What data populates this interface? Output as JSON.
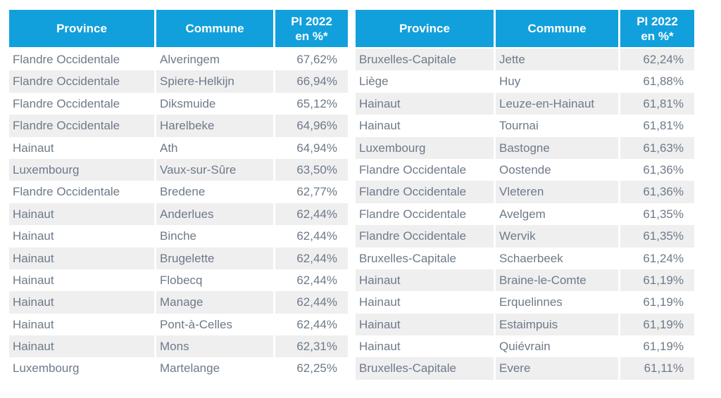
{
  "colors": {
    "header_blue": "#12A0DC",
    "stripe_gray": "#EFEFF0",
    "body_text": "#6E7A88",
    "header_text": "#FFFFFF"
  },
  "headers": {
    "province": "Province",
    "commune": "Commune",
    "pi_line1": "PI 2022",
    "pi_line2": "en %*"
  },
  "chart_data": {
    "type": "table",
    "columns": [
      "Province",
      "Commune",
      "PI 2022 en %*"
    ],
    "left_rows": [
      {
        "province": "Flandre Occidentale",
        "commune": "Alveringem",
        "pi": "67,62%"
      },
      {
        "province": "Flandre Occidentale",
        "commune": "Spiere-Helkijn",
        "pi": "66,94%"
      },
      {
        "province": "Flandre Occidentale",
        "commune": "Diksmuide",
        "pi": "65,12%"
      },
      {
        "province": "Flandre Occidentale",
        "commune": "Harelbeke",
        "pi": "64,96%"
      },
      {
        "province": "Hainaut",
        "commune": "Ath",
        "pi": "64,94%"
      },
      {
        "province": "Luxembourg",
        "commune": "Vaux-sur-Sûre",
        "pi": "63,50%"
      },
      {
        "province": "Flandre Occidentale",
        "commune": "Bredene",
        "pi": "62,77%"
      },
      {
        "province": "Hainaut",
        "commune": "Anderlues",
        "pi": "62,44%"
      },
      {
        "province": "Hainaut",
        "commune": "Binche",
        "pi": "62,44%"
      },
      {
        "province": "Hainaut",
        "commune": "Brugelette",
        "pi": "62,44%"
      },
      {
        "province": "Hainaut",
        "commune": "Flobecq",
        "pi": "62,44%"
      },
      {
        "province": "Hainaut",
        "commune": "Manage",
        "pi": "62,44%"
      },
      {
        "province": "Hainaut",
        "commune": "Pont-à-Celles",
        "pi": "62,44%"
      },
      {
        "province": "Hainaut",
        "commune": "Mons",
        "pi": "62,31%"
      },
      {
        "province": "Luxembourg",
        "commune": "Martelange",
        "pi": "62,25%"
      }
    ],
    "right_rows": [
      {
        "province": "Bruxelles-Capitale",
        "commune": "Jette",
        "pi": "62,24%"
      },
      {
        "province": "Liège",
        "commune": "Huy",
        "pi": "61,88%"
      },
      {
        "province": "Hainaut",
        "commune": "Leuze-en-Hainaut",
        "pi": "61,81%"
      },
      {
        "province": "Hainaut",
        "commune": "Tournai",
        "pi": "61,81%"
      },
      {
        "province": "Luxembourg",
        "commune": "Bastogne",
        "pi": "61,63%"
      },
      {
        "province": "Flandre Occidentale",
        "commune": "Oostende",
        "pi": "61,36%"
      },
      {
        "province": "Flandre Occidentale",
        "commune": "Vleteren",
        "pi": "61,36%"
      },
      {
        "province": "Flandre Occidentale",
        "commune": "Avelgem",
        "pi": "61,35%"
      },
      {
        "province": "Flandre Occidentale",
        "commune": "Wervik",
        "pi": "61,35%"
      },
      {
        "province": "Bruxelles-Capitale",
        "commune": "Schaerbeek",
        "pi": "61,24%"
      },
      {
        "province": "Hainaut",
        "commune": "Braine-le-Comte",
        "pi": "61,19%"
      },
      {
        "province": "Hainaut",
        "commune": "Erquelinnes",
        "pi": "61,19%"
      },
      {
        "province": "Hainaut",
        "commune": "Estaimpuis",
        "pi": "61,19%"
      },
      {
        "province": "Hainaut",
        "commune": "Quiévrain",
        "pi": "61,19%"
      },
      {
        "province": "Bruxelles-Capitale",
        "commune": "Evere",
        "pi": "61,11%"
      }
    ]
  }
}
